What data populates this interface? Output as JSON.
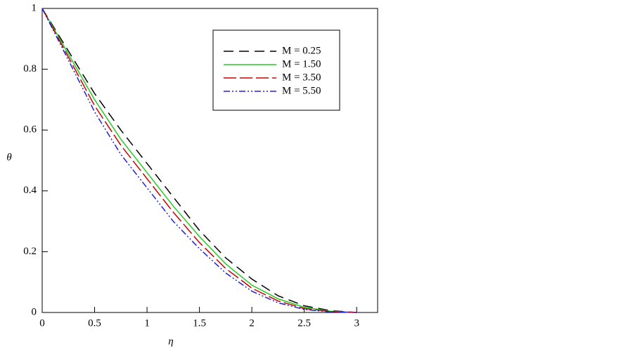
{
  "chart_data": {
    "type": "line",
    "x_label": "η",
    "y_label": "θ",
    "x": [
      0,
      0.25,
      0.5,
      0.75,
      1,
      1.25,
      1.5,
      1.75,
      2,
      2.25,
      2.5,
      2.75,
      3
    ],
    "series": [
      {
        "name": "M = 0.25",
        "color": "#000000",
        "dash": "14 8",
        "values": [
          1,
          0.86,
          0.72,
          0.6,
          0.49,
          0.38,
          0.27,
          0.18,
          0.11,
          0.055,
          0.022,
          0.006,
          0
        ]
      },
      {
        "name": "M = 1.50",
        "color": "#22cc22",
        "dash": "none",
        "values": [
          1,
          0.85,
          0.7,
          0.57,
          0.46,
          0.35,
          0.25,
          0.16,
          0.09,
          0.045,
          0.017,
          0.004,
          0
        ]
      },
      {
        "name": "M = 3.50",
        "color": "#cc0000",
        "dash": "18 5",
        "values": [
          1,
          0.84,
          0.68,
          0.55,
          0.44,
          0.33,
          0.23,
          0.145,
          0.08,
          0.038,
          0.013,
          0.003,
          0
        ]
      },
      {
        "name": "M = 5.50",
        "color": "#2222dd",
        "dash": "9 3 2 3 2 3",
        "values": [
          1,
          0.83,
          0.66,
          0.52,
          0.41,
          0.3,
          0.21,
          0.13,
          0.07,
          0.032,
          0.01,
          0.002,
          0
        ]
      }
    ],
    "xlim": [
      0,
      3.2
    ],
    "ylim": [
      0,
      1
    ],
    "xticks": [
      0,
      0.5,
      1,
      1.5,
      2,
      2.5,
      3
    ],
    "yticks": [
      0,
      0.2,
      0.4,
      0.6,
      0.8,
      1
    ],
    "legend": "upper-right"
  }
}
